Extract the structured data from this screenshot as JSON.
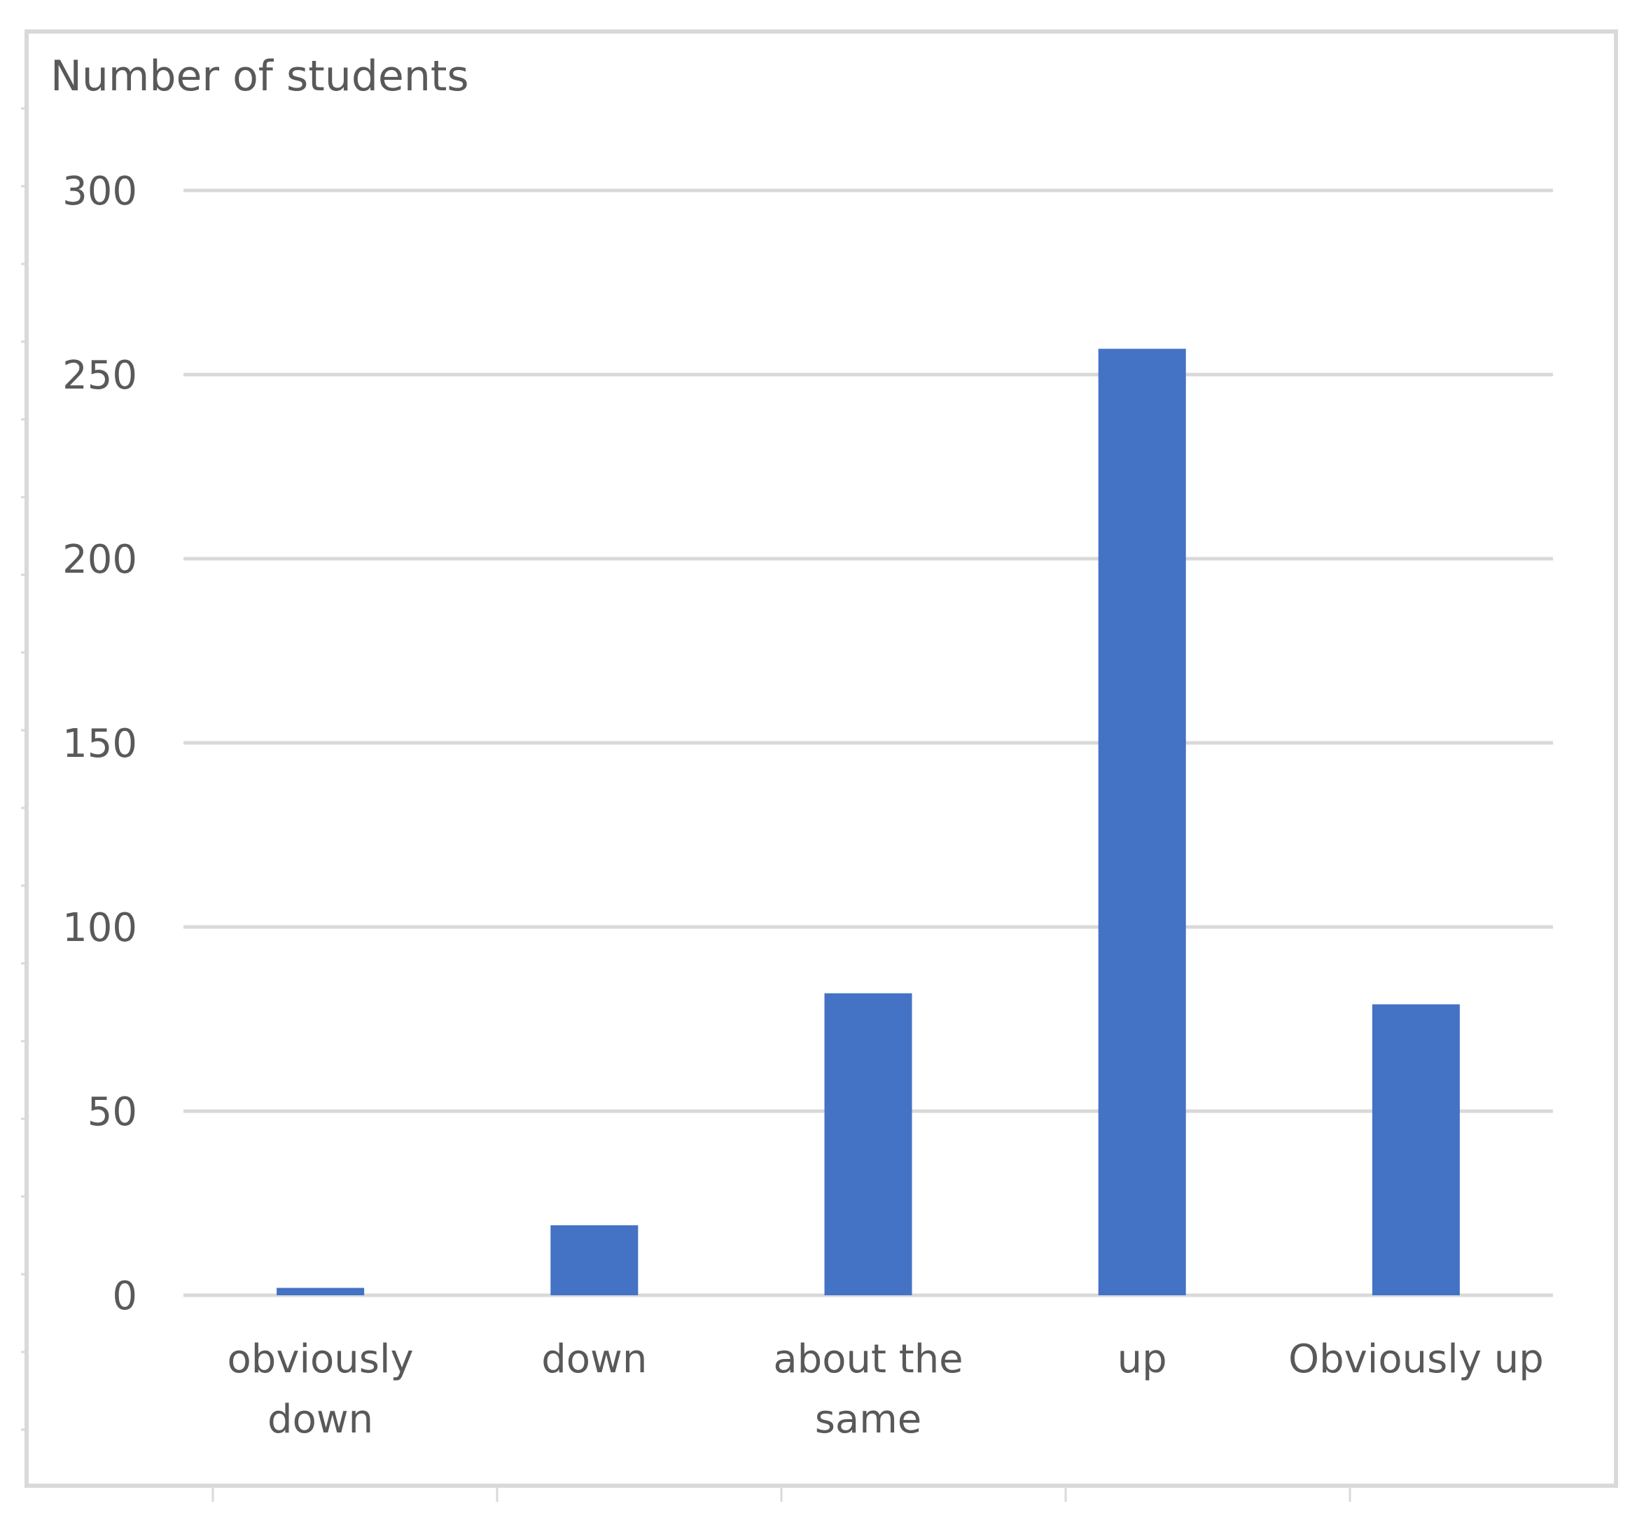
{
  "chart_data": {
    "type": "bar",
    "ylabel": "Number of students",
    "categories": [
      [
        "obviously",
        "down"
      ],
      [
        "down"
      ],
      [
        "about the",
        "same"
      ],
      [
        "up"
      ],
      [
        "Obviously up"
      ]
    ],
    "values": [
      2,
      19,
      82,
      257,
      79
    ],
    "ylim": [
      0,
      300
    ],
    "yticks": [
      0,
      50,
      100,
      150,
      200,
      250,
      300
    ],
    "grid": true,
    "legend": "none",
    "colors": {
      "bar": "#4472C4",
      "grid": "#D9D9D9",
      "text": "#595959",
      "frame": "#D9D9D9"
    }
  }
}
